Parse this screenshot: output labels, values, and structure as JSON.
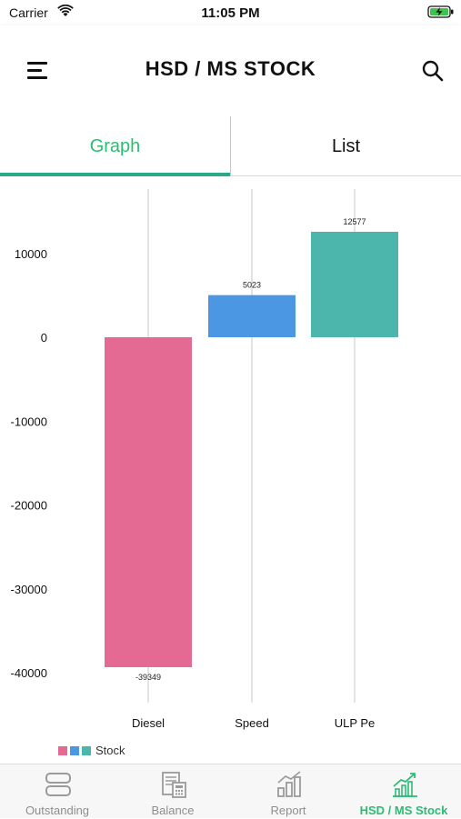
{
  "status_bar": {
    "carrier": "Carrier",
    "time": "11:05 PM"
  },
  "header": {
    "title": "HSD / MS STOCK"
  },
  "tabs": [
    {
      "label": "Graph",
      "active": true
    },
    {
      "label": "List",
      "active": false
    }
  ],
  "chart_data": {
    "type": "bar",
    "categories": [
      "Diesel",
      "Speed",
      "ULP Pe"
    ],
    "series": [
      {
        "name": "Stock",
        "values": [
          -39349,
          5023,
          12577
        ],
        "colors": [
          "#e46a94",
          "#4b97e3",
          "#4db6ac"
        ]
      }
    ],
    "data_labels": [
      "-39349",
      "5023",
      "12577"
    ],
    "y_ticks": [
      10000,
      0,
      -10000,
      -20000,
      -30000,
      -40000
    ],
    "y_tick_labels": [
      "10000",
      "0",
      "-10000",
      "-20000",
      "-30000",
      "-40000"
    ],
    "ylim": [
      -44000,
      17000
    ],
    "grid": "vertical lines at categories",
    "legend_position": "bottom-left",
    "title": "",
    "xlabel": "",
    "ylabel": ""
  },
  "legend": {
    "label": "Stock",
    "colors": [
      "#e46a94",
      "#4b97e3",
      "#4db6ac"
    ]
  },
  "tab_bar": {
    "items": [
      {
        "label": "Outstanding",
        "icon": "outstanding-icon",
        "active": false
      },
      {
        "label": "Balance",
        "icon": "balance-icon",
        "active": false
      },
      {
        "label": "Report",
        "icon": "report-icon",
        "active": false
      },
      {
        "label": "HSD / MS Stock",
        "icon": "stock-trend-icon",
        "active": true
      }
    ]
  },
  "colors": {
    "accent": "#2bbd73",
    "tab_underline": "#2aa88c",
    "inactive": "#8e8e8e"
  }
}
